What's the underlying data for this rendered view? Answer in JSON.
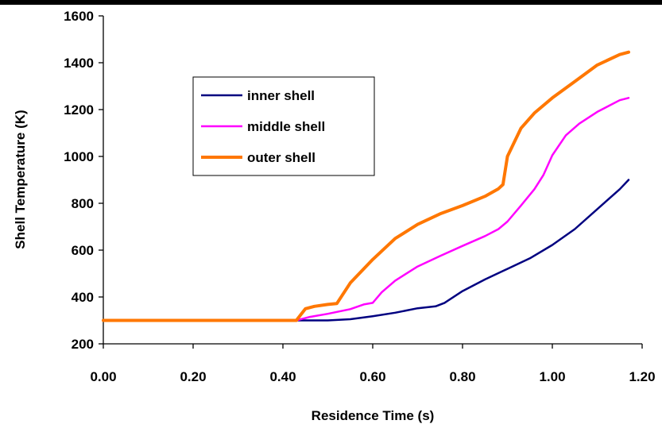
{
  "chart_data": {
    "type": "line",
    "title": "",
    "xlabel": "Residence Time (s)",
    "ylabel": "Shell Temperature (K)",
    "xlim": [
      0,
      1.2
    ],
    "ylim": [
      200,
      1600
    ],
    "xticks": [
      0,
      0.2,
      0.4,
      0.6,
      0.8,
      1.0,
      1.2
    ],
    "xtick_labels": [
      "0.00",
      "0.20",
      "0.40",
      "0.60",
      "0.80",
      "1.00",
      "1.20"
    ],
    "yticks": [
      200,
      400,
      600,
      800,
      1000,
      1200,
      1400,
      1600
    ],
    "ytick_labels": [
      "200",
      "400",
      "600",
      "800",
      "1000",
      "1200",
      "1400",
      "1600"
    ],
    "grid": false,
    "legend_position": "upper-left inside plot",
    "series": [
      {
        "name": "inner shell",
        "color": "#000080",
        "x": [
          0,
          0.05,
          0.1,
          0.2,
          0.3,
          0.4,
          0.43,
          0.5,
          0.55,
          0.6,
          0.65,
          0.7,
          0.74,
          0.76,
          0.8,
          0.85,
          0.9,
          0.95,
          1.0,
          1.05,
          1.1,
          1.15,
          1.17
        ],
        "y": [
          300,
          300,
          300,
          300,
          300,
          300,
          300,
          300,
          305,
          318,
          333,
          352,
          360,
          375,
          425,
          475,
          520,
          565,
          622,
          690,
          775,
          860,
          900
        ]
      },
      {
        "name": "middle shell",
        "color": "#FF00FF",
        "x": [
          0,
          0.05,
          0.1,
          0.2,
          0.3,
          0.4,
          0.43,
          0.46,
          0.5,
          0.55,
          0.58,
          0.6,
          0.62,
          0.65,
          0.7,
          0.75,
          0.8,
          0.85,
          0.88,
          0.9,
          0.93,
          0.96,
          0.98,
          1.0,
          1.03,
          1.06,
          1.1,
          1.15,
          1.17
        ],
        "y": [
          300,
          300,
          300,
          300,
          300,
          300,
          300,
          315,
          328,
          348,
          368,
          375,
          420,
          470,
          530,
          575,
          618,
          660,
          690,
          722,
          790,
          860,
          920,
          1005,
          1090,
          1140,
          1190,
          1240,
          1250
        ]
      },
      {
        "name": "outer shell",
        "color": "#FF7700",
        "x": [
          0,
          0.05,
          0.1,
          0.2,
          0.3,
          0.4,
          0.43,
          0.45,
          0.47,
          0.5,
          0.52,
          0.55,
          0.6,
          0.65,
          0.7,
          0.75,
          0.8,
          0.85,
          0.88,
          0.89,
          0.9,
          0.93,
          0.96,
          1.0,
          1.05,
          1.1,
          1.15,
          1.17
        ],
        "y": [
          300,
          300,
          300,
          300,
          300,
          300,
          300,
          350,
          360,
          368,
          372,
          460,
          560,
          650,
          710,
          755,
          790,
          830,
          862,
          880,
          1000,
          1120,
          1185,
          1250,
          1320,
          1390,
          1435,
          1445
        ]
      }
    ]
  }
}
